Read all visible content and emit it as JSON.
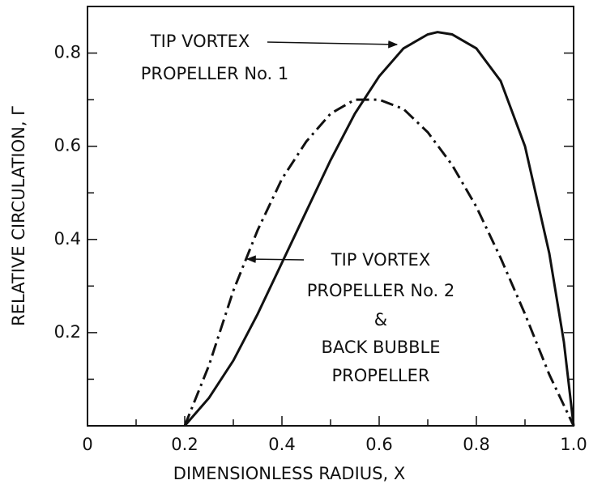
{
  "chart_data": {
    "type": "line",
    "xlabel": "DIMENSIONLESS RADIUS, X",
    "ylabel": "RELATIVE CIRCULATION, Γ",
    "xlim": [
      0,
      1.0
    ],
    "ylim": [
      0,
      0.9
    ],
    "xticks": [
      0,
      0.2,
      0.4,
      0.6,
      0.8,
      {
        "value": 1.0,
        "label": "1.0"
      }
    ],
    "minor_xticks": [
      0.1,
      0.3,
      0.5,
      0.7,
      0.9
    ],
    "yticks": [
      0.2,
      0.4,
      0.6,
      0.8
    ],
    "minor_yticks": [
      0.1,
      0.3,
      0.5,
      0.7
    ],
    "series": [
      {
        "color": "#111111",
        "style": "solid",
        "annotation": [
          "TIP VORTEX",
          "PROPELLER No. 1"
        ],
        "x": [
          0.2,
          0.25,
          0.3,
          0.35,
          0.4,
          0.45,
          0.5,
          0.55,
          0.6,
          0.65,
          0.7,
          0.72,
          0.75,
          0.8,
          0.85,
          0.9,
          0.95,
          0.98,
          1.0
        ],
        "values": [
          0,
          0.06,
          0.14,
          0.24,
          0.35,
          0.46,
          0.57,
          0.67,
          0.75,
          0.81,
          0.84,
          0.845,
          0.84,
          0.81,
          0.74,
          0.6,
          0.37,
          0.18,
          0
        ]
      },
      {
        "color": "#111111",
        "style": "dashdot",
        "annotation": [
          "TIP VORTEX",
          "PROPELLER No. 2",
          "&",
          "BACK BUBBLE",
          "PROPELLER"
        ],
        "x": [
          0.2,
          0.25,
          0.3,
          0.35,
          0.4,
          0.45,
          0.5,
          0.55,
          0.6,
          0.65,
          0.7,
          0.75,
          0.8,
          0.85,
          0.9,
          0.95,
          1.0
        ],
        "values": [
          0,
          0.13,
          0.29,
          0.42,
          0.53,
          0.61,
          0.67,
          0.7,
          0.7,
          0.68,
          0.63,
          0.56,
          0.47,
          0.36,
          0.24,
          0.11,
          0
        ]
      }
    ]
  }
}
